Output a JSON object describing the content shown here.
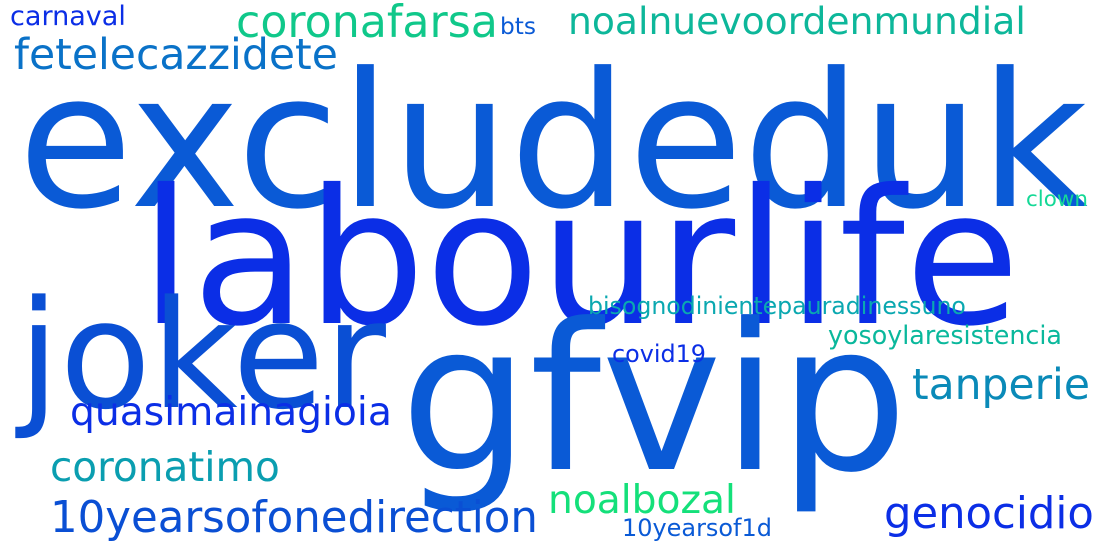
{
  "words": [
    {
      "id": "excludeduk",
      "text": "excludeduk",
      "color": "#0a5ad6"
    },
    {
      "id": "labourlife",
      "text": "labourlife",
      "color": "#0b2ee6"
    },
    {
      "id": "gfvip",
      "text": "gfvip",
      "color": "#0a5ad6"
    },
    {
      "id": "joker",
      "text": "joker",
      "color": "#0a4fd4"
    },
    {
      "id": "coronafarsa",
      "text": "coronafarsa",
      "color": "#10c88a"
    },
    {
      "id": "noalnuevoordenmundial",
      "text": "noalnuevoordenmundial",
      "color": "#0db79a"
    },
    {
      "id": "fetelecazzidete",
      "text": "fetelecazzidete",
      "color": "#0a72c8"
    },
    {
      "id": "tanperie",
      "text": "tanperie",
      "color": "#0a8ab8"
    },
    {
      "id": "quasimainagioia",
      "text": "quasimainagioia",
      "color": "#0b2ee6"
    },
    {
      "id": "coronatimo",
      "text": "coronatimo",
      "color": "#0a9eb0"
    },
    {
      "id": "10yearsofonedirection",
      "text": "10yearsofonedirection",
      "color": "#0a4fd4"
    },
    {
      "id": "noalbozal",
      "text": "noalbozal",
      "color": "#14e07a"
    },
    {
      "id": "genocidio",
      "text": "genocidio",
      "color": "#0b2ee6"
    },
    {
      "id": "bisognodinientepauradinessuno",
      "text": "bisognodinientepauradinessuno",
      "color": "#0aa8b0"
    },
    {
      "id": "yosoylaresistencia",
      "text": "yosoylaresistencia",
      "color": "#0ab89c"
    },
    {
      "id": "covid19",
      "text": "covid19",
      "color": "#0b2ee6"
    },
    {
      "id": "10yearsof1d",
      "text": "10yearsof1d",
      "color": "#0a5ad6"
    },
    {
      "id": "carnaval",
      "text": "carnaval",
      "color": "#0b2ee6"
    },
    {
      "id": "bts",
      "text": "bts",
      "color": "#0a5ad6"
    },
    {
      "id": "clown",
      "text": "clown",
      "color": "#14d896"
    }
  ]
}
